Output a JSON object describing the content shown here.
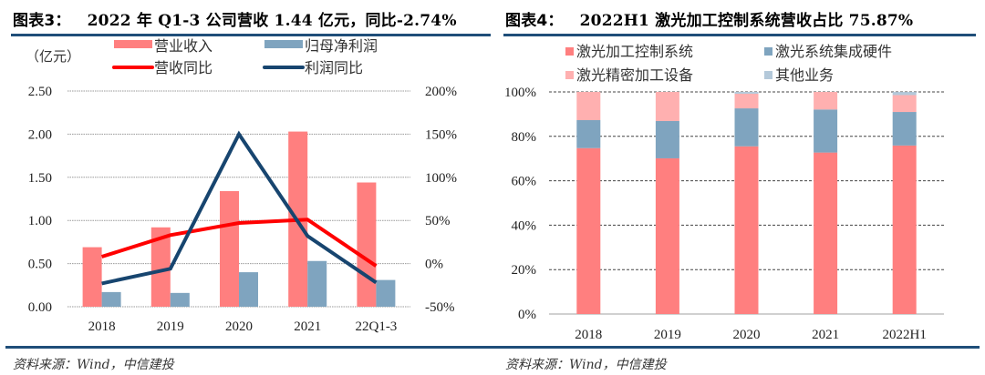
{
  "left": {
    "title_prefix": "图表3：",
    "title": "2022 年 Q1-3 公司营收 1.44 亿元，同比-2.74%",
    "source": "资料来源：Wind，中信建投"
  },
  "right": {
    "title_prefix": "图表4：",
    "title": "2022H1 激光加工控制系统营收占比 75.87%",
    "source": "资料来源：Wind，中信建投"
  },
  "chart_data": [
    {
      "type": "bar",
      "title": "2022 年 Q1-3 公司营收 1.44 亿元，同比-2.74%",
      "unit_label": "（亿元）",
      "categories": [
        "2018",
        "2019",
        "2020",
        "2021",
        "22Q1-3"
      ],
      "left_axis": {
        "ylim": [
          0,
          2.5
        ],
        "ticks": [
          "0.00",
          "0.50",
          "1.00",
          "1.50",
          "2.00",
          "2.50"
        ]
      },
      "right_axis": {
        "ylim": [
          -50,
          200
        ],
        "ticks": [
          "-50%",
          "0%",
          "50%",
          "100%",
          "150%",
          "200%"
        ]
      },
      "grid": true,
      "legend_position": "top",
      "series": [
        {
          "name": "营业收入",
          "kind": "bar",
          "axis": "left",
          "color": "#ff7f7f",
          "values": [
            0.69,
            0.92,
            1.34,
            2.03,
            1.44
          ]
        },
        {
          "name": "归母净利润",
          "kind": "bar",
          "axis": "left",
          "color": "#7fa4bf",
          "values": [
            0.17,
            0.16,
            0.4,
            0.53,
            0.31
          ]
        },
        {
          "name": "营收同比",
          "kind": "line",
          "axis": "right",
          "color": "#ff0000",
          "values": [
            8,
            33,
            47,
            51,
            -2.74
          ]
        },
        {
          "name": "利润同比",
          "kind": "line",
          "axis": "right",
          "color": "#17456f",
          "values": [
            -23,
            -6,
            150,
            32,
            -22
          ]
        }
      ]
    },
    {
      "type": "bar",
      "stacked": true,
      "title": "2022H1 激光加工控制系统营收占比 75.87%",
      "categories": [
        "2018",
        "2019",
        "2020",
        "2021",
        "2022H1"
      ],
      "ylim": [
        0,
        100
      ],
      "ticks": [
        "0%",
        "20%",
        "40%",
        "60%",
        "80%",
        "100%"
      ],
      "grid": true,
      "legend_position": "top",
      "series": [
        {
          "name": "激光加工控制系统",
          "color": "#ff7f7f",
          "values": [
            74.7,
            70.1,
            75.5,
            72.7,
            75.87
          ]
        },
        {
          "name": "激光系统集成硬件",
          "color": "#7fa4bf",
          "values": [
            12.6,
            16.8,
            17.1,
            19.4,
            15.1
          ]
        },
        {
          "name": "激光精密加工设备",
          "color": "#ffb0b0",
          "values": [
            12.7,
            13.1,
            6.6,
            7.9,
            7.6
          ]
        },
        {
          "name": "其他业务",
          "color": "#b4c9da",
          "values": [
            0.0,
            0.0,
            0.8,
            0.0,
            1.4
          ]
        }
      ]
    }
  ]
}
